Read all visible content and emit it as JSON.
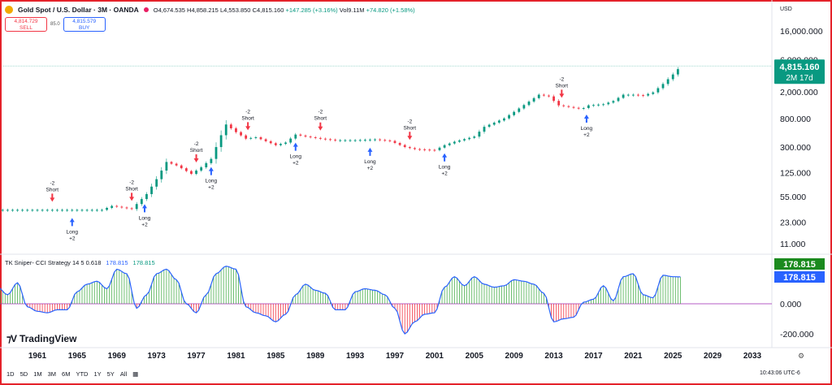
{
  "header": {
    "symbol": "Gold Spot / U.S. Dollar · 3M · OANDA",
    "open": "O4,674.535",
    "high": "H4,858.215",
    "low": "L4,553.850",
    "close": "C4,815.160",
    "change": "+147.285 (+3.16%)",
    "volume_label": "Vol",
    "volume": "9.11M",
    "vol_change": "+74.820 (+1.58%)"
  },
  "trade": {
    "sell_price": "4,814.729",
    "sell_label": "SELL",
    "spread": "85.0",
    "buy_price": "4,815.579",
    "buy_label": "BUY"
  },
  "currency": "USD",
  "indicator": {
    "name": "TK Sniper- CCI Strategy 14 5 0.618",
    "value_blue": "178.815",
    "value_green": "178.815"
  },
  "logo": "TradingView",
  "toolbar": {
    "items": [
      "1D",
      "5D",
      "1M",
      "3M",
      "6M",
      "YTD",
      "1Y",
      "5Y",
      "All"
    ]
  },
  "clock": "10:43:06 UTC-6",
  "colors": {
    "up": "#089981",
    "down": "#f23645",
    "hist_pos": "#4caf50",
    "hist_neg": "#f23645",
    "cci_line": "#2962ff",
    "signal_long": "#2962ff",
    "signal_short": "#f23645"
  },
  "chart_data": [
    {
      "type": "line",
      "scale": "log",
      "price_axis": {
        "ticks": [
          {
            "value": 16000,
            "label": "16,000.000"
          },
          {
            "value": 6000,
            "label": "6,000.000"
          },
          {
            "value": 2000,
            "label": "2,000.000"
          },
          {
            "value": 800,
            "label": "800.000"
          },
          {
            "value": 300,
            "label": "300.000"
          },
          {
            "value": 125,
            "label": "125.000"
          },
          {
            "value": 55,
            "label": "55.000"
          },
          {
            "value": 23,
            "label": "23.000"
          },
          {
            "value": 11,
            "label": "11.000"
          }
        ]
      },
      "time_axis": [
        "1961",
        "1965",
        "1969",
        "1973",
        "1977",
        "1981",
        "1985",
        "1989",
        "1993",
        "1997",
        "2001",
        "2005",
        "2009",
        "2013",
        "2017",
        "2021",
        "2025",
        "2029",
        "2033"
      ],
      "price_series": {
        "x": [
          1956,
          1960,
          1964,
          1967.5,
          1968.5,
          1970.5,
          1972,
          1973,
          1974,
          1975,
          1976.5,
          1977.5,
          1978.5,
          1979.5,
          1980,
          1981,
          1982,
          1983,
          1985,
          1986,
          1987,
          1988,
          1989.5,
          1991,
          1993,
          1995,
          1996.5,
          1998,
          1999,
          2001,
          2002,
          2003,
          2005,
          2006,
          2008,
          2009,
          2011,
          2011.5,
          2012.5,
          2013.5,
          2015,
          2015.8,
          2016.5,
          2018,
          2019,
          2020,
          2021,
          2022,
          2023,
          2024,
          2025,
          2025.8
        ],
        "y": [
          35,
          35,
          35,
          35,
          40,
          36,
          60,
          100,
          180,
          160,
          120,
          150,
          200,
          450,
          650,
          500,
          400,
          420,
          320,
          350,
          460,
          430,
          400,
          380,
          380,
          390,
          370,
          300,
          280,
          270,
          320,
          360,
          430,
          600,
          800,
          1000,
          1600,
          1800,
          1700,
          1250,
          1150,
          1100,
          1250,
          1300,
          1450,
          1800,
          1800,
          1750,
          1950,
          2600,
          3600,
          4815.16
        ]
      },
      "last_price_label": "4,815.160",
      "countdown": "2M 17d",
      "signals": [
        {
          "type": "long",
          "x": 1956.3,
          "label": "Long\n+2"
        },
        {
          "type": "short",
          "x": 1962.5,
          "label": "-2\nShort"
        },
        {
          "type": "long",
          "x": 1964.5,
          "label": "Long\n+2"
        },
        {
          "type": "short",
          "x": 1970.5,
          "label": "-2\nShort"
        },
        {
          "type": "long",
          "x": 1971.8,
          "label": "Long\n+2"
        },
        {
          "type": "short",
          "x": 1977,
          "label": "-2\nShort"
        },
        {
          "type": "long",
          "x": 1978.5,
          "label": "Long\n+2"
        },
        {
          "type": "short",
          "x": 1982.2,
          "label": "-2\nShort"
        },
        {
          "type": "long",
          "x": 1987,
          "label": "Long\n+2"
        },
        {
          "type": "short",
          "x": 1989.5,
          "label": "-2\nShort"
        },
        {
          "type": "long",
          "x": 1994.5,
          "label": "Long\n+2"
        },
        {
          "type": "short",
          "x": 1998.5,
          "label": "-2\nShort"
        },
        {
          "type": "long",
          "x": 2002,
          "label": "Long\n+2"
        },
        {
          "type": "short",
          "x": 2013.8,
          "label": "-2\nShort"
        },
        {
          "type": "long",
          "x": 2016.3,
          "label": "Long\n+2"
        }
      ]
    },
    {
      "type": "area",
      "series_name": "TK Sniper- CCI Strategy 14 5 0.618",
      "value_axis": {
        "ticks": [
          {
            "value": 0,
            "label": "0.000"
          },
          {
            "value": -200,
            "label": "-200.000"
          }
        ]
      },
      "x": [
        1956,
        1957,
        1958,
        1959,
        1960,
        1961,
        1962,
        1963,
        1964,
        1965,
        1966,
        1967,
        1968,
        1969,
        1970,
        1971,
        1972,
        1973,
        1974,
        1975,
        1976,
        1977,
        1978,
        1979,
        1980,
        1981,
        1982,
        1983,
        1984,
        1985,
        1986,
        1987,
        1988,
        1989,
        1990,
        1991,
        1992,
        1993,
        1994,
        1995,
        1996,
        1997,
        1998,
        1999,
        2000,
        2001,
        2002,
        2003,
        2004,
        2005,
        2006,
        2007,
        2008,
        2009,
        2010,
        2011,
        2012,
        2013,
        2014,
        2015,
        2016,
        2017,
        2018,
        2019,
        2020,
        2021,
        2022,
        2023,
        2024,
        2025,
        2025.8
      ],
      "y": [
        -40,
        110,
        60,
        140,
        -20,
        -50,
        -60,
        -40,
        -40,
        80,
        130,
        150,
        100,
        230,
        200,
        -30,
        60,
        200,
        230,
        160,
        0,
        -60,
        60,
        200,
        250,
        230,
        -20,
        -60,
        -80,
        -120,
        -70,
        60,
        130,
        90,
        70,
        -40,
        -40,
        80,
        100,
        90,
        60,
        -30,
        -200,
        -120,
        -70,
        -60,
        110,
        180,
        120,
        180,
        130,
        110,
        120,
        160,
        150,
        130,
        70,
        -120,
        -100,
        -90,
        10,
        30,
        120,
        20,
        180,
        200,
        60,
        40,
        190,
        180,
        178.815
      ]
    }
  ]
}
